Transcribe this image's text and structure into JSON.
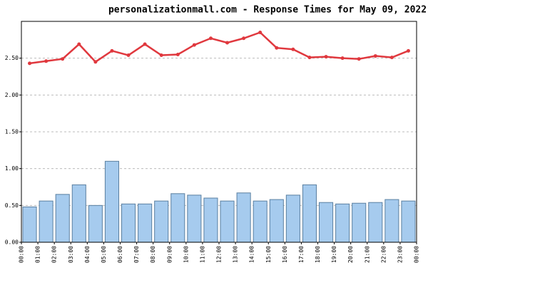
{
  "chart_data": {
    "type": "combo",
    "title": "personalizationmall.com - Response Times for May 09, 2022",
    "xticks": [
      "00:00",
      "01:00",
      "02:00",
      "03:00",
      "04:00",
      "05:00",
      "06:00",
      "07:00",
      "08:00",
      "09:00",
      "10:00",
      "11:00",
      "12:00",
      "13:00",
      "14:00",
      "15:00",
      "16:00",
      "17:00",
      "18:00",
      "19:00",
      "20:00",
      "21:00",
      "22:00",
      "23:00",
      "00:00"
    ],
    "ylim": [
      0,
      3
    ],
    "yticks": [
      {
        "value": 0,
        "label": "0.00"
      },
      {
        "value": 0.5,
        "label": "0.50"
      },
      {
        "value": 1,
        "label": "1.00"
      },
      {
        "value": 1.5,
        "label": "1.50"
      },
      {
        "value": 2,
        "label": "2.00"
      },
      {
        "value": 2.5,
        "label": "2.50"
      }
    ],
    "grid": true,
    "series": [
      {
        "type": "bar",
        "color": "#a6cbee",
        "values": [
          0.48,
          0.56,
          0.65,
          0.78,
          0.5,
          1.1,
          0.52,
          0.52,
          0.56,
          0.66,
          0.64,
          0.6,
          0.56,
          0.67,
          0.56,
          0.58,
          0.64,
          0.78,
          0.54,
          0.52,
          0.53,
          0.54,
          0.58,
          0.56
        ]
      },
      {
        "type": "line",
        "color": "#e0383e",
        "values": [
          2.43,
          2.46,
          2.49,
          2.69,
          2.45,
          2.6,
          2.54,
          2.69,
          2.54,
          2.55,
          2.68,
          2.77,
          2.71,
          2.77,
          2.85,
          2.64,
          2.62,
          2.51,
          2.52,
          2.5,
          2.49,
          2.53,
          2.51,
          2.6
        ]
      }
    ]
  }
}
